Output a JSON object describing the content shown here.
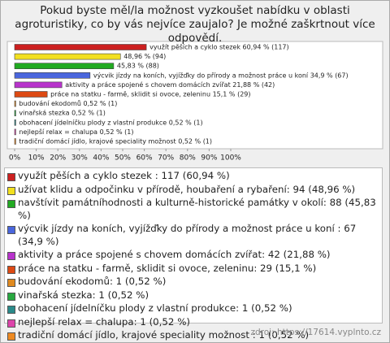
{
  "title": "Pokud byste měl/la možnost vyzkoušet nabídku v oblasti agroturistiky, co by vás nejvíce zaujalo? Je možné zaškrtnout více odpovědí.",
  "chart_data": {
    "type": "hbar",
    "categories": [
      "využít pěších a cyklo stezek : 117 (60,94 %)",
      "užívat klidu a odpočinku v přírodě, houbaření a rybaření: 94 (48,96 %)",
      "navštívit památníhodnosti a kulturně-historické památky v okolí: 88 (45,83 %)",
      "výcvik jízdy na koních, vyjížďky do přírody a možnost práce u koní : 67 (34,9 %)",
      "aktivity a práce spojené s chovem domácích zvířat: 42 (21,88 %)",
      "práce na statku - farmě, sklidit si ovoce, zeleninu: 29 (15,1 %)",
      "budování ekodomů: 1 (0,52 %)",
      "vinařská stezka: 1 (0,52 %)",
      "obohacení jídelníčku plody z vlastní produkce: 1 (0,52 %)",
      "nejlepší relax = chalupa: 1 (0,52 %)",
      "tradiční domácí jídlo, krajové speciality možnost : 1 (0,52 %)"
    ],
    "values": [
      60.94,
      48.96,
      45.83,
      34.9,
      21.88,
      15.1,
      0.52,
      0.52,
      0.52,
      0.52,
      0.52
    ],
    "value_labels": [
      "využít pěších a cyklo stezek  60,94 % (117)",
      "48,96 % (94)",
      "45,83 % (88)",
      "výcvik jízdy na koních, vyjížďky do přírody a možnost práce u koní  34,9 % (67)",
      "aktivity a práce spojené s chovem domácích zvířat 21,88 % (42)",
      "práce na statku - farmě, sklidit si ovoce, zeleninu  15,1 % (29)",
      "budování ekodomů 0,52 % (1)",
      "vinařská stezka 0,52 % (1)",
      "obohacení jídelníčku plody z vlastní produkce 0,52 % (1)",
      "nejlepší relax = chalupa 0,52 % (1)",
      "tradiční domácí jídlo, krajové speciality možnost  0,52 % (1)"
    ],
    "colors": [
      "#cc2020",
      "#f2e020",
      "#22aa22",
      "#4a66dd",
      "#b833cc",
      "#dd4a14",
      "#e08a20",
      "#28a840",
      "#2a8a8a",
      "#dd44aa",
      "#ee8a22"
    ],
    "xlim": [
      0,
      100
    ],
    "xticks": [
      {
        "value": 0,
        "label": "0%"
      },
      {
        "value": 10,
        "label": "10%"
      },
      {
        "value": 20,
        "label": "20%"
      },
      {
        "value": 30,
        "label": "30%"
      },
      {
        "value": 40,
        "label": "40%"
      },
      {
        "value": 50,
        "label": "50%"
      },
      {
        "value": 60,
        "label": "60%"
      },
      {
        "value": 70,
        "label": "70%"
      },
      {
        "value": 80,
        "label": "80%"
      },
      {
        "value": 90,
        "label": "90%"
      },
      {
        "value": 100,
        "label": "100%"
      }
    ]
  },
  "source": "zdroj: https://17614.vyplnto.cz"
}
